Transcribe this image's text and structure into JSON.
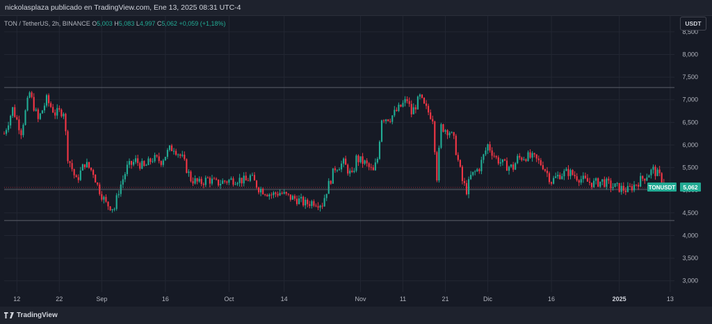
{
  "header": {
    "publisher": "nickolasplaza publicado en TradingView.com, Ene 13, 2025 08:31 UTC-4"
  },
  "legend": {
    "symbol": "TON / TetherUS, 2h, BINANCE",
    "o_label": "O",
    "o_value": "5,003",
    "h_label": "H",
    "h_value": "5,083",
    "l_label": "L",
    "l_value": "4,997",
    "c_label": "C",
    "c_value": "5,062",
    "change": "+0,059 (+1,18%)"
  },
  "toolbar": {
    "unit_button": "USDT"
  },
  "footer": {
    "brand": "TradingView"
  },
  "colors": {
    "up": "#22ab94",
    "down": "#f23645",
    "background": "#161a25",
    "grid": "#232733",
    "label": "#22ab94"
  },
  "chart_data": {
    "type": "candlestick",
    "y_ticks": [
      "3,000",
      "3,500",
      "4,000",
      "4,500",
      "5,000",
      "5,500",
      "6,000",
      "6,500",
      "7,000",
      "7,500",
      "8,000",
      "8,500"
    ],
    "y_tick_values": [
      3000,
      3500,
      4000,
      4500,
      5000,
      5500,
      6000,
      6500,
      7000,
      7500,
      8000,
      8500
    ],
    "ylim": [
      2750,
      8850
    ],
    "x_ticks": [
      {
        "label": "12",
        "day": 0,
        "bold": false
      },
      {
        "label": "22",
        "day": 10,
        "bold": false
      },
      {
        "label": "Sep",
        "day": 20,
        "bold": false
      },
      {
        "label": "16",
        "day": 35,
        "bold": false
      },
      {
        "label": "Oct",
        "day": 50,
        "bold": false
      },
      {
        "label": "14",
        "day": 63,
        "bold": false
      },
      {
        "label": "Nov",
        "day": 81,
        "bold": false
      },
      {
        "label": "11",
        "day": 91,
        "bold": false
      },
      {
        "label": "21",
        "day": 101,
        "bold": false
      },
      {
        "label": "Dic",
        "day": 111,
        "bold": false
      },
      {
        "label": "16",
        "day": 126,
        "bold": false
      },
      {
        "label": "2025",
        "day": 142,
        "bold": true
      },
      {
        "label": "13",
        "day": 154,
        "bold": false
      }
    ],
    "xlim_days": [
      -3,
      155
    ],
    "horizontal_levels": [
      7270,
      5020,
      4330
    ],
    "current_price": {
      "symbol": "TONUSDT",
      "value": "5,062",
      "price": 5062
    },
    "price_path": [
      [
        -3,
        6250
      ],
      [
        -1,
        6800
      ],
      [
        1,
        6300
      ],
      [
        3,
        7150
      ],
      [
        5,
        6550
      ],
      [
        7,
        7000
      ],
      [
        9,
        6700
      ],
      [
        11,
        6750
      ],
      [
        12,
        5750
      ],
      [
        14,
        5200
      ],
      [
        16,
        5600
      ],
      [
        18,
        5400
      ],
      [
        19,
        5100
      ],
      [
        21,
        4700
      ],
      [
        23,
        4600
      ],
      [
        24,
        5000
      ],
      [
        26,
        5500
      ],
      [
        28,
        5650
      ],
      [
        30,
        5500
      ],
      [
        32,
        5700
      ],
      [
        34,
        5650
      ],
      [
        36,
        5900
      ],
      [
        37,
        5950
      ],
      [
        39,
        5700
      ],
      [
        41,
        5250
      ],
      [
        43,
        5150
      ],
      [
        45,
        5250
      ],
      [
        47,
        5150
      ],
      [
        49,
        5200
      ],
      [
        52,
        5250
      ],
      [
        54,
        5200
      ],
      [
        55,
        5300
      ],
      [
        57,
        5050
      ],
      [
        60,
        4900
      ],
      [
        62,
        4950
      ],
      [
        64,
        4850
      ],
      [
        66,
        4800
      ],
      [
        68,
        4700
      ],
      [
        70,
        4750
      ],
      [
        72,
        4700
      ],
      [
        73,
        5000
      ],
      [
        75,
        5500
      ],
      [
        77,
        5600
      ],
      [
        79,
        5300
      ],
      [
        80,
        5700
      ],
      [
        82,
        5600
      ],
      [
        84,
        5400
      ],
      [
        85,
        5700
      ],
      [
        86,
        6600
      ],
      [
        88,
        6600
      ],
      [
        90,
        6800
      ],
      [
        92,
        7000
      ],
      [
        93,
        6700
      ],
      [
        95,
        7050
      ],
      [
        96,
        6850
      ],
      [
        98,
        6600
      ],
      [
        99,
        5300
      ],
      [
        100,
        6400
      ],
      [
        102,
        6300
      ],
      [
        103,
        6100
      ],
      [
        105,
        5200
      ],
      [
        106,
        5000
      ],
      [
        107,
        5300
      ],
      [
        109,
        5500
      ],
      [
        111,
        6000
      ],
      [
        113,
        5700
      ],
      [
        115,
        5550
      ],
      [
        117,
        5500
      ],
      [
        118,
        5700
      ],
      [
        120,
        5750
      ],
      [
        122,
        5700
      ],
      [
        124,
        5550
      ],
      [
        126,
        5200
      ],
      [
        128,
        5350
      ],
      [
        130,
        5400
      ],
      [
        132,
        5300
      ],
      [
        134,
        5200
      ],
      [
        136,
        5150
      ],
      [
        138,
        5200
      ],
      [
        140,
        5100
      ],
      [
        142,
        5050
      ],
      [
        144,
        5000
      ],
      [
        146,
        5150
      ],
      [
        148,
        5300
      ],
      [
        150,
        5450
      ],
      [
        152,
        5250
      ],
      [
        153,
        5062
      ]
    ],
    "candles_per_day": 2
  }
}
